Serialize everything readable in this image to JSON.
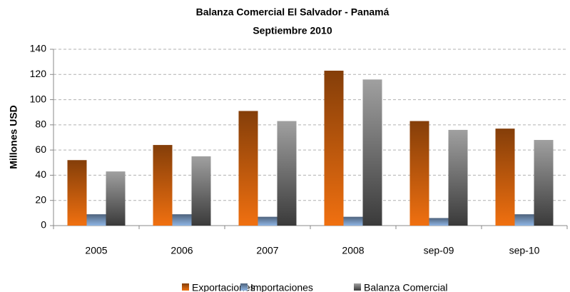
{
  "chart_data": {
    "type": "bar",
    "title": "Balanza Comercial El Salvador - Panamá",
    "subtitle": "Septiembre 2010",
    "y_label": "Millones USD",
    "categories": [
      "2005",
      "2006",
      "2007",
      "2008",
      "sep-09",
      "sep-10"
    ],
    "series": [
      {
        "name": "Exportaciones",
        "color": "#f07010",
        "values": [
          52,
          64,
          91,
          123,
          83,
          77
        ]
      },
      {
        "name": "Importaciones",
        "color": "#8eb4e3",
        "values": [
          9,
          9,
          7,
          7,
          6,
          9
        ]
      },
      {
        "name": "Balanza Comercial",
        "color": "#808080",
        "values": [
          43,
          55,
          83,
          116,
          76,
          68
        ]
      }
    ],
    "ylim": [
      0,
      140
    ],
    "yticks": [
      0,
      20,
      40,
      60,
      80,
      100,
      120,
      140
    ],
    "grid": true,
    "legend": "bottom"
  }
}
